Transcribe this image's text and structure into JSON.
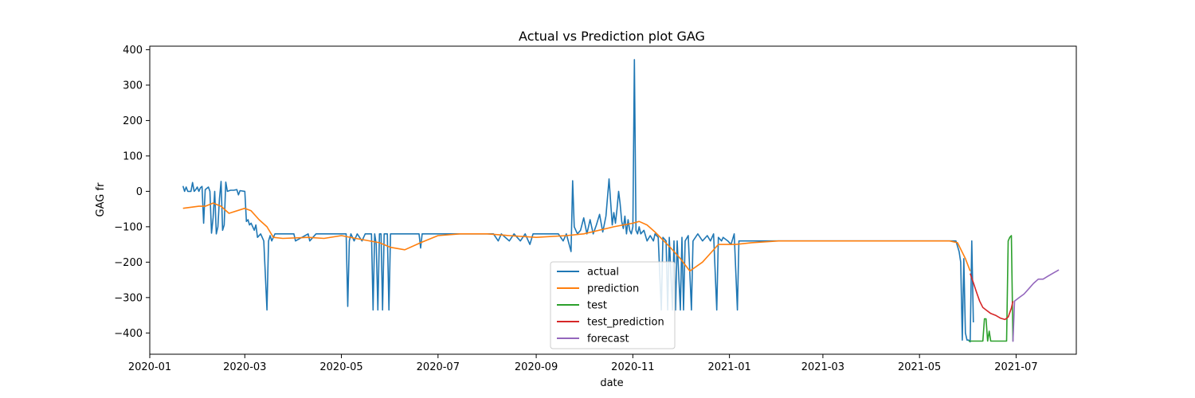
{
  "chart_data": {
    "type": "line",
    "title": "Actual vs Prediction plot GAG",
    "xlabel": "date",
    "ylabel": "GAG fr",
    "xlim": [
      "2020-01-01",
      "2021-08-08"
    ],
    "ylim": [
      -460,
      410
    ],
    "x_ticks": [
      "2020-01",
      "2020-03",
      "2020-05",
      "2020-07",
      "2020-09",
      "2020-11",
      "2021-01",
      "2021-03",
      "2021-05",
      "2021-07"
    ],
    "x_tick_dates": [
      "2020-01-01",
      "2020-03-01",
      "2020-05-01",
      "2020-07-01",
      "2020-09-01",
      "2020-11-01",
      "2021-01-01",
      "2021-03-01",
      "2021-05-01",
      "2021-07-01"
    ],
    "y_ticks": [
      -400,
      -300,
      -200,
      -100,
      0,
      100,
      200,
      300,
      400
    ],
    "legend_position": "lower-center",
    "grid": false,
    "series": [
      {
        "name": "actual",
        "color": "#1f77b4",
        "points": [
          [
            "2020-01-22",
            15
          ],
          [
            "2020-01-23",
            0
          ],
          [
            "2020-01-24",
            12
          ],
          [
            "2020-01-25",
            0
          ],
          [
            "2020-01-27",
            0
          ],
          [
            "2020-01-28",
            25
          ],
          [
            "2020-01-29",
            0
          ],
          [
            "2020-01-30",
            5
          ],
          [
            "2020-01-31",
            12
          ],
          [
            "2020-02-01",
            0
          ],
          [
            "2020-02-02",
            10
          ],
          [
            "2020-02-03",
            14
          ],
          [
            "2020-02-04",
            -90
          ],
          [
            "2020-02-05",
            5
          ],
          [
            "2020-02-07",
            12
          ],
          [
            "2020-02-08",
            0
          ],
          [
            "2020-02-09",
            -118
          ],
          [
            "2020-02-10",
            -75
          ],
          [
            "2020-02-11",
            0
          ],
          [
            "2020-02-12",
            -120
          ],
          [
            "2020-02-13",
            -100
          ],
          [
            "2020-02-14",
            -20
          ],
          [
            "2020-02-15",
            28
          ],
          [
            "2020-02-16",
            -110
          ],
          [
            "2020-02-17",
            -95
          ],
          [
            "2020-02-18",
            26
          ],
          [
            "2020-02-19",
            0
          ],
          [
            "2020-02-21",
            3
          ],
          [
            "2020-02-23",
            3
          ],
          [
            "2020-02-25",
            5
          ],
          [
            "2020-02-26",
            -10
          ],
          [
            "2020-02-27",
            2
          ],
          [
            "2020-03-01",
            0
          ],
          [
            "2020-03-02",
            -85
          ],
          [
            "2020-03-03",
            -80
          ],
          [
            "2020-03-04",
            -95
          ],
          [
            "2020-03-05",
            -90
          ],
          [
            "2020-03-07",
            -110
          ],
          [
            "2020-03-08",
            -95
          ],
          [
            "2020-03-09",
            -130
          ],
          [
            "2020-03-11",
            -120
          ],
          [
            "2020-03-13",
            -140
          ],
          [
            "2020-03-15",
            -335
          ],
          [
            "2020-03-16",
            -140
          ],
          [
            "2020-03-17",
            -125
          ],
          [
            "2020-03-18",
            -140
          ],
          [
            "2020-03-20",
            -120
          ],
          [
            "2020-04-01",
            -120
          ],
          [
            "2020-04-02",
            -140
          ],
          [
            "2020-04-10",
            -120
          ],
          [
            "2020-04-11",
            -140
          ],
          [
            "2020-04-15",
            -120
          ],
          [
            "2020-05-01",
            -120
          ],
          [
            "2020-05-04",
            -120
          ],
          [
            "2020-05-05",
            -325
          ],
          [
            "2020-05-06",
            -140
          ],
          [
            "2020-05-07",
            -120
          ],
          [
            "2020-05-09",
            -140
          ],
          [
            "2020-05-11",
            -120
          ],
          [
            "2020-05-14",
            -140
          ],
          [
            "2020-05-16",
            -120
          ],
          [
            "2020-05-20",
            -120
          ],
          [
            "2020-05-21",
            -335
          ],
          [
            "2020-05-22",
            -120
          ],
          [
            "2020-05-23",
            -150
          ],
          [
            "2020-05-24",
            -335
          ],
          [
            "2020-05-25",
            -120
          ],
          [
            "2020-05-26",
            -120
          ],
          [
            "2020-05-27",
            -335
          ],
          [
            "2020-05-28",
            -120
          ],
          [
            "2020-05-30",
            -120
          ],
          [
            "2020-05-31",
            -335
          ],
          [
            "2020-06-01",
            -120
          ],
          [
            "2020-06-05",
            -120
          ],
          [
            "2020-06-08",
            -120
          ],
          [
            "2020-06-15",
            -120
          ],
          [
            "2020-06-19",
            -120
          ],
          [
            "2020-06-20",
            -160
          ],
          [
            "2020-06-21",
            -120
          ],
          [
            "2020-06-25",
            -120
          ],
          [
            "2020-07-15",
            -120
          ],
          [
            "2020-08-05",
            -120
          ],
          [
            "2020-08-08",
            -140
          ],
          [
            "2020-08-10",
            -120
          ],
          [
            "2020-08-15",
            -140
          ],
          [
            "2020-08-18",
            -120
          ],
          [
            "2020-08-22",
            -140
          ],
          [
            "2020-08-25",
            -120
          ],
          [
            "2020-08-28",
            -150
          ],
          [
            "2020-08-30",
            -120
          ],
          [
            "2020-09-05",
            -120
          ],
          [
            "2020-09-15",
            -120
          ],
          [
            "2020-09-18",
            -140
          ],
          [
            "2020-09-20",
            -120
          ],
          [
            "2020-09-23",
            -170
          ],
          [
            "2020-09-24",
            30
          ],
          [
            "2020-09-25",
            -100
          ],
          [
            "2020-09-27",
            -120
          ],
          [
            "2020-09-29",
            -110
          ],
          [
            "2020-10-01",
            -75
          ],
          [
            "2020-10-03",
            -120
          ],
          [
            "2020-10-05",
            -80
          ],
          [
            "2020-10-07",
            -120
          ],
          [
            "2020-10-09",
            -95
          ],
          [
            "2020-10-11",
            -65
          ],
          [
            "2020-10-13",
            -115
          ],
          [
            "2020-10-15",
            -70
          ],
          [
            "2020-10-17",
            35
          ],
          [
            "2020-10-19",
            -95
          ],
          [
            "2020-10-20",
            -60
          ],
          [
            "2020-10-21",
            -90
          ],
          [
            "2020-10-22",
            -50
          ],
          [
            "2020-10-23",
            0
          ],
          [
            "2020-10-24",
            -35
          ],
          [
            "2020-10-25",
            -85
          ],
          [
            "2020-10-26",
            -105
          ],
          [
            "2020-10-27",
            -70
          ],
          [
            "2020-10-28",
            -120
          ],
          [
            "2020-10-29",
            -80
          ],
          [
            "2020-10-30",
            -110
          ],
          [
            "2020-10-31",
            -120
          ],
          [
            "2020-11-01",
            -100
          ],
          [
            "2020-11-02",
            372
          ],
          [
            "2020-11-03",
            -110
          ],
          [
            "2020-11-04",
            -120
          ],
          [
            "2020-11-05",
            -100
          ],
          [
            "2020-11-06",
            -120
          ],
          [
            "2020-11-08",
            -110
          ],
          [
            "2020-11-10",
            -140
          ],
          [
            "2020-11-12",
            -125
          ],
          [
            "2020-11-14",
            -140
          ],
          [
            "2020-11-15",
            -120
          ],
          [
            "2020-11-17",
            -130
          ],
          [
            "2020-11-19",
            -335
          ],
          [
            "2020-11-20",
            -130
          ],
          [
            "2020-11-22",
            -140
          ],
          [
            "2020-11-23",
            -335
          ],
          [
            "2020-11-24",
            -130
          ],
          [
            "2020-11-26",
            -335
          ],
          [
            "2020-11-27",
            -140
          ],
          [
            "2020-11-28",
            -335
          ],
          [
            "2020-11-29",
            -140
          ],
          [
            "2020-12-01",
            -335
          ],
          [
            "2020-12-02",
            -130
          ],
          [
            "2020-12-03",
            -335
          ],
          [
            "2020-12-04",
            -140
          ],
          [
            "2020-12-06",
            -125
          ],
          [
            "2020-12-08",
            -335
          ],
          [
            "2020-12-09",
            -140
          ],
          [
            "2020-12-12",
            -120
          ],
          [
            "2020-12-15",
            -140
          ],
          [
            "2020-12-18",
            -125
          ],
          [
            "2020-12-20",
            -140
          ],
          [
            "2020-12-22",
            -120
          ],
          [
            "2020-12-24",
            -335
          ],
          [
            "2020-12-25",
            -130
          ],
          [
            "2020-12-27",
            -140
          ],
          [
            "2020-12-28",
            -130
          ],
          [
            "2020-12-31",
            -140
          ],
          [
            "2021-01-02",
            -150
          ],
          [
            "2021-01-04",
            -120
          ],
          [
            "2021-01-06",
            -335
          ],
          [
            "2021-01-07",
            -140
          ],
          [
            "2021-01-10",
            -140
          ],
          [
            "2021-01-15",
            -140
          ],
          [
            "2021-01-31",
            -140
          ],
          [
            "2021-02-15",
            -140
          ],
          [
            "2021-05-24",
            -140
          ],
          [
            "2021-05-26",
            -170
          ],
          [
            "2021-05-27",
            -200
          ],
          [
            "2021-05-28",
            -420
          ],
          [
            "2021-05-29",
            -190
          ],
          [
            "2021-05-30",
            -400
          ],
          [
            "2021-05-31",
            -420
          ],
          [
            "2021-06-01",
            -420
          ],
          [
            "2021-06-02",
            -425
          ],
          [
            "2021-06-03",
            -140
          ],
          [
            "2021-06-04",
            -370
          ]
        ]
      },
      {
        "name": "prediction",
        "color": "#ff7f0e",
        "points": [
          [
            "2020-01-22",
            -48
          ],
          [
            "2020-02-01",
            -42
          ],
          [
            "2020-02-05",
            -42
          ],
          [
            "2020-02-10",
            -33
          ],
          [
            "2020-02-15",
            -42
          ],
          [
            "2020-02-20",
            -62
          ],
          [
            "2020-03-01",
            -48
          ],
          [
            "2020-03-05",
            -55
          ],
          [
            "2020-03-10",
            -80
          ],
          [
            "2020-03-15",
            -100
          ],
          [
            "2020-03-19",
            -130
          ],
          [
            "2020-03-25",
            -133
          ],
          [
            "2020-04-10",
            -130
          ],
          [
            "2020-04-20",
            -133
          ],
          [
            "2020-05-01",
            -125
          ],
          [
            "2020-05-10",
            -133
          ],
          [
            "2020-05-25",
            -145
          ],
          [
            "2020-06-01",
            -158
          ],
          [
            "2020-06-10",
            -165
          ],
          [
            "2020-06-20",
            -145
          ],
          [
            "2020-07-01",
            -125
          ],
          [
            "2020-07-15",
            -120
          ],
          [
            "2020-08-01",
            -120
          ],
          [
            "2020-08-15",
            -125
          ],
          [
            "2020-09-01",
            -130
          ],
          [
            "2020-09-20",
            -125
          ],
          [
            "2020-10-01",
            -120
          ],
          [
            "2020-10-20",
            -100
          ],
          [
            "2020-11-01",
            -90
          ],
          [
            "2020-11-05",
            -85
          ],
          [
            "2020-11-10",
            -95
          ],
          [
            "2020-11-15",
            -115
          ],
          [
            "2020-11-25",
            -160
          ],
          [
            "2020-12-01",
            -190
          ],
          [
            "2020-12-07",
            -225
          ],
          [
            "2020-12-15",
            -200
          ],
          [
            "2020-12-25",
            -150
          ],
          [
            "2021-01-05",
            -150
          ],
          [
            "2021-01-15",
            -145
          ],
          [
            "2021-02-01",
            -140
          ],
          [
            "2021-03-01",
            -140
          ],
          [
            "2021-04-01",
            -140
          ],
          [
            "2021-05-20",
            -140
          ],
          [
            "2021-05-25",
            -145
          ],
          [
            "2021-05-30",
            -190
          ],
          [
            "2021-06-02",
            -225
          ]
        ]
      },
      {
        "name": "test",
        "color": "#2ca02c",
        "points": [
          [
            "2021-06-01",
            -423
          ],
          [
            "2021-06-10",
            -423
          ],
          [
            "2021-06-11",
            -360
          ],
          [
            "2021-06-12",
            -360
          ],
          [
            "2021-06-13",
            -423
          ],
          [
            "2021-06-14",
            -395
          ],
          [
            "2021-06-15",
            -423
          ],
          [
            "2021-06-25",
            -423
          ],
          [
            "2021-06-26",
            -140
          ],
          [
            "2021-06-27",
            -130
          ],
          [
            "2021-06-28",
            -125
          ],
          [
            "2021-06-29",
            -423
          ]
        ]
      },
      {
        "name": "test_prediction",
        "color": "#d62728",
        "points": [
          [
            "2021-06-02",
            -232
          ],
          [
            "2021-06-04",
            -258
          ],
          [
            "2021-06-06",
            -285
          ],
          [
            "2021-06-08",
            -310
          ],
          [
            "2021-06-10",
            -328
          ],
          [
            "2021-06-12",
            -335
          ],
          [
            "2021-06-15",
            -345
          ],
          [
            "2021-06-18",
            -350
          ],
          [
            "2021-06-21",
            -358
          ],
          [
            "2021-06-24",
            -362
          ],
          [
            "2021-06-26",
            -355
          ],
          [
            "2021-06-28",
            -330
          ],
          [
            "2021-06-29",
            -310
          ]
        ]
      },
      {
        "name": "forecast",
        "color": "#9467bd",
        "points": [
          [
            "2021-06-29",
            -425
          ],
          [
            "2021-06-30",
            -310
          ],
          [
            "2021-07-03",
            -300
          ],
          [
            "2021-07-06",
            -290
          ],
          [
            "2021-07-09",
            -275
          ],
          [
            "2021-07-12",
            -260
          ],
          [
            "2021-07-15",
            -248
          ],
          [
            "2021-07-18",
            -248
          ],
          [
            "2021-07-21",
            -240
          ],
          [
            "2021-07-24",
            -232
          ],
          [
            "2021-07-28",
            -222
          ]
        ]
      }
    ]
  }
}
